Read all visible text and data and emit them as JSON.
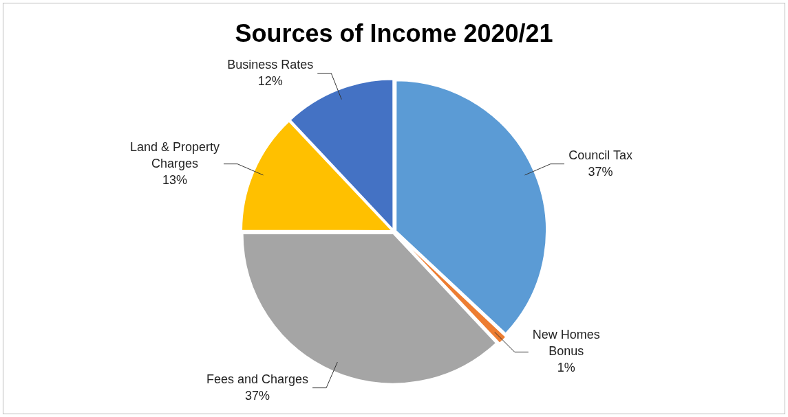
{
  "chart_data": {
    "type": "pie",
    "title": "Sources of Income 2020/21",
    "categories": [
      "Council Tax",
      "New Homes Bonus",
      "Fees and Charges",
      "Land & Property Charges",
      "Business Rates"
    ],
    "values": [
      37,
      1,
      37,
      13,
      12
    ],
    "value_labels": [
      "37%",
      "1%",
      "37%",
      "13%",
      "12%"
    ],
    "colors": [
      "#5b9bd5",
      "#ed7d31",
      "#a5a5a5",
      "#ffc000",
      "#4472c4"
    ],
    "legend": false
  }
}
